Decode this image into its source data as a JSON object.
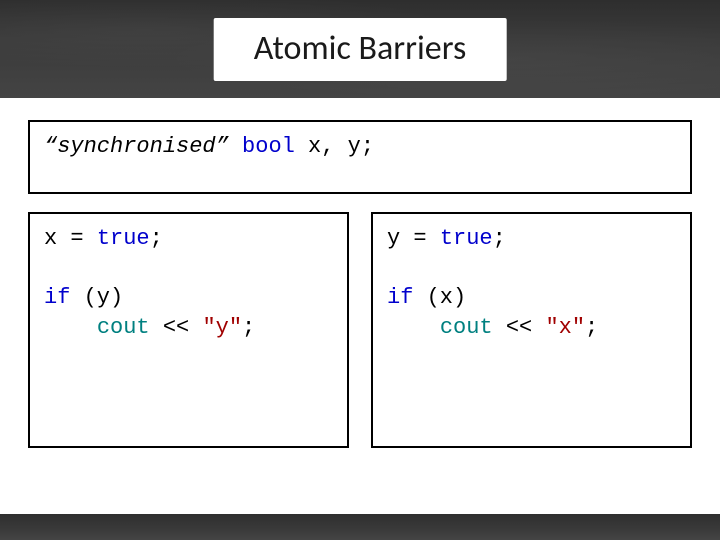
{
  "slide": {
    "title": "Atomic Barriers",
    "header_bg": "#383838",
    "footer_bg": "#383838",
    "page_bg": "#ffffff",
    "title_pill_bg": "#ffffff",
    "title_color": "#1a1a1a",
    "title_fontsize": 34,
    "code_fontsize": 22,
    "code_font": "Consolas",
    "border_color": "#000000",
    "colors": {
      "keyword_blue": "#0000cc",
      "keyword_teal": "#008080",
      "string_red": "#a00000",
      "text": "#000000"
    }
  },
  "decl": {
    "quoted_open": "“",
    "synchronised": "synchronised",
    "quoted_close": "” ",
    "bool": "bool",
    "vars": " x, y;"
  },
  "left": {
    "line1_pre": "x = ",
    "line1_true": "true",
    "line1_post": ";",
    "blank": "",
    "line2_if": "if",
    "line2_rest": " (y)",
    "line3_indent": "    ",
    "line3_cout": "cout",
    "line3_mid": " << ",
    "line3_str": "\"y\"",
    "line3_post": ";"
  },
  "right": {
    "line1_pre": "y = ",
    "line1_true": "true",
    "line1_post": ";",
    "blank": "",
    "line2_if": "if",
    "line2_rest": " (x)",
    "line3_indent": "    ",
    "line3_cout": "cout",
    "line3_mid": " << ",
    "line3_str": "\"x\"",
    "line3_post": ";"
  }
}
